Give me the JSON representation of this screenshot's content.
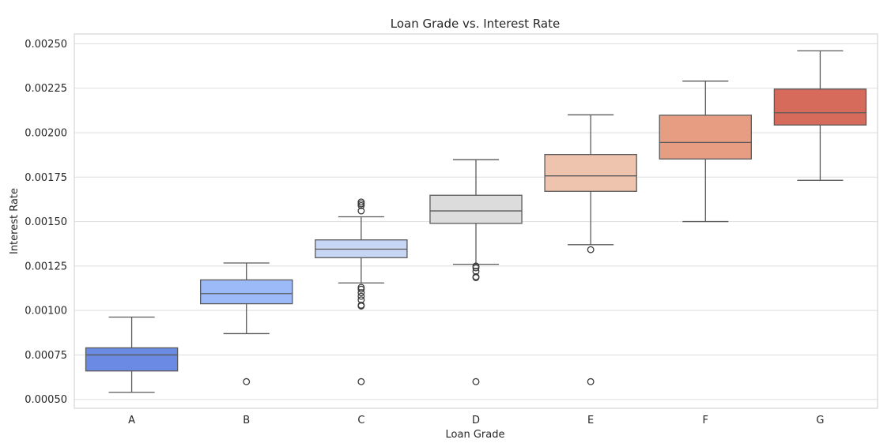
{
  "chart_data": {
    "type": "box",
    "title": "Loan Grade vs. Interest Rate",
    "xlabel": "Loan Grade",
    "ylabel": "Interest Rate",
    "ylim": [
      0.00045,
      0.002555
    ],
    "yticks": [
      0.0005,
      0.00075,
      0.001,
      0.00125,
      0.0015,
      0.00175,
      0.002,
      0.00225,
      0.0025
    ],
    "ytick_labels": [
      "0.00050",
      "0.00075",
      "0.00100",
      "0.00125",
      "0.00150",
      "0.00175",
      "0.00200",
      "0.00225",
      "0.00250"
    ],
    "grid": true,
    "categories": [
      "A",
      "B",
      "C",
      "D",
      "E",
      "F",
      "G"
    ],
    "boxes": [
      {
        "category": "A",
        "whisker_low": 0.00054,
        "q1": 0.00066,
        "median": 0.00075,
        "q3": 0.00079,
        "whisker_high": 0.000963,
        "outliers": [],
        "color": "#6b8ae3"
      },
      {
        "category": "B",
        "whisker_low": 0.00087,
        "q1": 0.001038,
        "median": 0.001095,
        "q3": 0.001172,
        "whisker_high": 0.001267,
        "outliers": [
          0.0006
        ],
        "color": "#9bbaf7"
      },
      {
        "category": "C",
        "whisker_low": 0.001155,
        "q1": 0.001297,
        "median": 0.001345,
        "q3": 0.001397,
        "whisker_high": 0.001527,
        "outliers": [
          0.0006,
          0.001025,
          0.00103,
          0.00106,
          0.00108,
          0.0011,
          0.00112,
          0.00113,
          0.00156,
          0.00159,
          0.0016,
          0.00161
        ],
        "color": "#c8d6f5"
      },
      {
        "category": "D",
        "whisker_low": 0.00126,
        "q1": 0.00149,
        "median": 0.00156,
        "q3": 0.001648,
        "whisker_high": 0.001848,
        "outliers": [
          0.0006,
          0.001185,
          0.00119,
          0.00122,
          0.00124,
          0.00125
        ],
        "color": "#dcdcdc"
      },
      {
        "category": "E",
        "whisker_low": 0.00137,
        "q1": 0.00167,
        "median": 0.001757,
        "q3": 0.001877,
        "whisker_high": 0.0021,
        "outliers": [
          0.0006,
          0.001342
        ],
        "color": "#efc4ae"
      },
      {
        "category": "F",
        "whisker_low": 0.0015,
        "q1": 0.001852,
        "median": 0.001945,
        "q3": 0.002098,
        "whisker_high": 0.00229,
        "outliers": [],
        "color": "#e69d82"
      },
      {
        "category": "G",
        "whisker_low": 0.001732,
        "q1": 0.002043,
        "median": 0.002112,
        "q3": 0.002245,
        "whisker_high": 0.00246,
        "outliers": [],
        "color": "#d66a5b"
      }
    ]
  }
}
